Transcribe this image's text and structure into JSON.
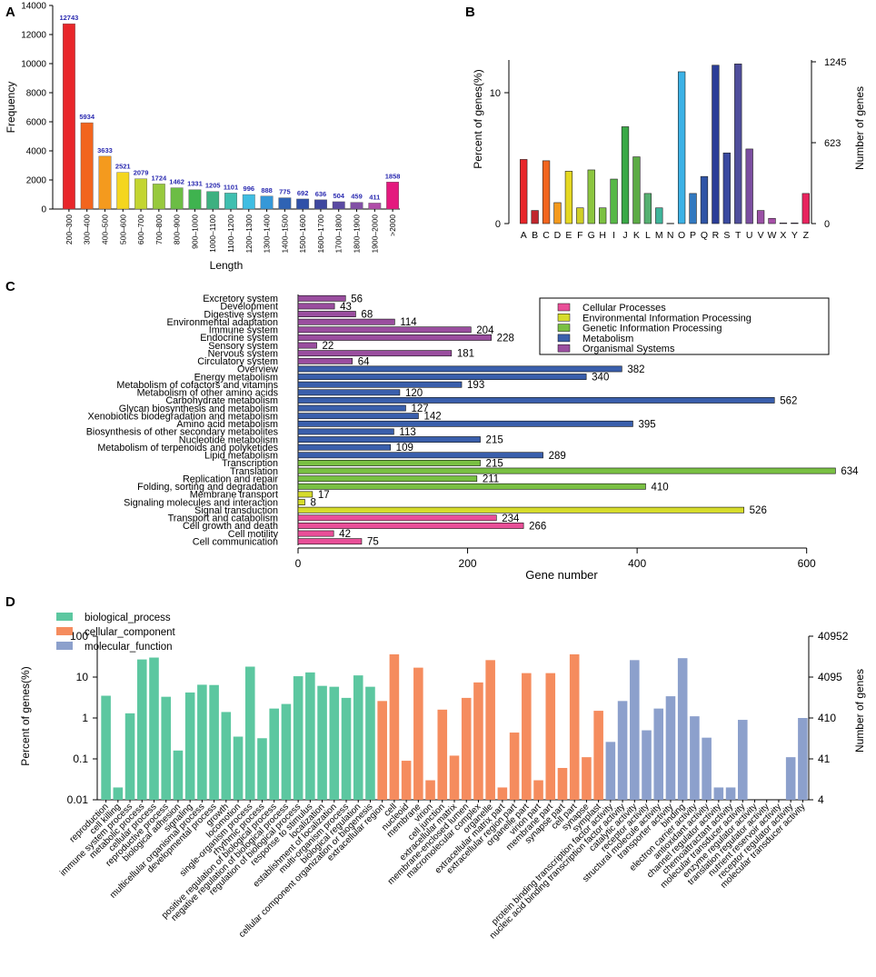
{
  "chart_data": [
    {
      "panel": "A",
      "type": "bar",
      "xlabel": "Length",
      "ylabel": "Frequency",
      "ylim": [
        0,
        14000
      ],
      "yticks": [
        0,
        2000,
        4000,
        6000,
        8000,
        10000,
        12000,
        14000
      ],
      "categories": [
        "200–300",
        "300–400",
        "400–500",
        "500–600",
        "600–700",
        "700–800",
        "800–900",
        "900–1000",
        "1000–1100",
        "1100–1200",
        "1200–1300",
        "1300–1400",
        "1400–1500",
        "1500–1600",
        "1600–1700",
        "1700–1800",
        "1800–1900",
        "1900–2000",
        ">2000"
      ],
      "values": [
        12743,
        5934,
        3633,
        2521,
        2079,
        1724,
        1462,
        1331,
        1205,
        1101,
        996,
        888,
        775,
        692,
        636,
        504,
        459,
        411,
        1858
      ],
      "colors": [
        "#e8262a",
        "#f2651e",
        "#f49a1e",
        "#f4d61f",
        "#c3d530",
        "#97c93d",
        "#6cbd45",
        "#3fb34f",
        "#3db080",
        "#3fbfb0",
        "#3fbde2",
        "#3598d8",
        "#2f63b4",
        "#2f50a8",
        "#3e479f",
        "#5a4aa2",
        "#8250a5",
        "#b04ca8",
        "#e4197e"
      ],
      "label_color": "#2a2ab0"
    },
    {
      "panel": "B",
      "type": "bar",
      "ylabel": "Percent of genes(%)",
      "y2label": "Number of genes",
      "ylim": [
        0,
        12.5
      ],
      "yticks": [
        0,
        10
      ],
      "y2ticks": [
        "0",
        "623",
        "1245"
      ],
      "categories": [
        "A",
        "B",
        "C",
        "D",
        "E",
        "F",
        "G",
        "H",
        "I",
        "J",
        "K",
        "L",
        "M",
        "N",
        "O",
        "P",
        "Q",
        "R",
        "S",
        "T",
        "U",
        "V",
        "W",
        "X",
        "Y",
        "Z"
      ],
      "values": [
        4.9,
        1.0,
        4.8,
        1.6,
        4.0,
        1.2,
        4.1,
        1.2,
        3.4,
        7.4,
        5.1,
        2.3,
        1.2,
        0.02,
        11.6,
        2.3,
        3.6,
        12.1,
        5.4,
        12.2,
        5.7,
        1.0,
        0.4,
        0.05,
        0.05,
        2.3
      ],
      "colors": [
        "#e8262a",
        "#c1272d",
        "#f2651e",
        "#f49a1e",
        "#e5d822",
        "#d0cf27",
        "#8cc63f",
        "#7cc142",
        "#57b847",
        "#3aa947",
        "#5cab45",
        "#55b071",
        "#3fb59b",
        "#29abe2",
        "#3cb2e6",
        "#3279c0",
        "#2f54a6",
        "#2b3d97",
        "#3a4aa0",
        "#4f4e9c",
        "#7b4ea0",
        "#9b51a6",
        "#a74fa8",
        "#7b3f99",
        "#5b2c87",
        "#e8245e"
      ]
    },
    {
      "panel": "C",
      "type": "bar",
      "orientation": "horizontal",
      "xlabel": "Gene number",
      "xlim": [
        0,
        640
      ],
      "xticks": [
        0,
        200,
        400,
        600
      ],
      "categories": [
        "Excretory system",
        "Development",
        "Digestive system",
        "Environmental adaptation",
        "Immune system",
        "Endocrine system",
        "Sensory system",
        "Nervous system",
        "Circulatory system",
        "Overview",
        "Energy metabolism",
        "Metabolism of cofactors and vitamins",
        "Metabolism of other amino acids",
        "Carbohydrate metabolism",
        "Glycan biosynthesis and metabolism",
        "Xenobiotics biodegradation and metabolism",
        "Amino acid metabolism",
        "Biosynthesis of other secondary metabolites",
        "Nucleotide metabolism",
        "Metabolism of terpenoids and polyketides",
        "Lipid metabolism",
        "Transcription",
        "Translation",
        "Replication and repair",
        "Folding, sorting and degradation",
        "Membrane transport",
        "Signaling molecules and interaction",
        "Signal transduction",
        "Transport and catabolism",
        "Cell growth and death",
        "Cell motility",
        "Cell communication"
      ],
      "values": [
        56,
        43,
        68,
        114,
        204,
        228,
        22,
        181,
        64,
        382,
        340,
        193,
        120,
        562,
        127,
        142,
        395,
        113,
        215,
        109,
        289,
        215,
        634,
        211,
        410,
        17,
        8,
        526,
        234,
        266,
        42,
        75
      ],
      "groups": [
        4,
        4,
        4,
        4,
        4,
        4,
        4,
        4,
        4,
        3,
        3,
        3,
        3,
        3,
        3,
        3,
        3,
        3,
        3,
        3,
        3,
        2,
        2,
        2,
        2,
        1,
        1,
        1,
        0,
        0,
        0,
        0
      ],
      "legend": [
        "Cellular Processes",
        "Environmental Information Processing",
        "Genetic Information Processing",
        "Metabolism",
        "Organismal Systems"
      ],
      "group_colors": [
        "#e94f98",
        "#d6dc2b",
        "#79c043",
        "#3a5fac",
        "#9a4e9f"
      ],
      "legend_position": "top-right"
    },
    {
      "panel": "D",
      "type": "bar",
      "yscale": "log",
      "ylabel": "Percent of genes(%)",
      "y2label": "Number of genes",
      "ylim": [
        0.01,
        100
      ],
      "yticks": [
        "0.01",
        "0.1",
        "1",
        "10",
        "100"
      ],
      "y2ticks": [
        "4",
        "41",
        "410",
        "4095",
        "40952"
      ],
      "legend": [
        "biological_process",
        "cellular_component",
        "molecular_function"
      ],
      "group_colors": [
        "#5cc7a0",
        "#f58c5e",
        "#8ca0cc"
      ],
      "legend_position": "top-left",
      "categories": [
        "reproduction",
        "cell killing",
        "immune system process",
        "metabolic process",
        "cellular process",
        "reproductive process",
        "biological adhesion",
        "signaling",
        "multicellular organismal process",
        "developmental process",
        "growth",
        "locomotion",
        "single-organism process",
        "rhythmic process",
        "positive regulation of biological process",
        "negative regulation of biological process",
        "regulation of biological process",
        "response to stimulus",
        "localization",
        "establishment of localization",
        "multi-organism process",
        "biological regulation",
        "cellular component organization or biogenesis",
        "extracellular region",
        "cell",
        "nucleoid",
        "membrane",
        "virion",
        "cell junction",
        "extracellular matrix",
        "membrane-enclosed lumen",
        "macromolecular complex",
        "organelle",
        "extracellular matrix part",
        "extracellular region part",
        "organelle part",
        "virion part",
        "membrane part",
        "synapse part",
        "cell part",
        "synapse",
        "symplast",
        "protein binding transcription factor activity",
        "nucleic acid binding transcription factor activity",
        "catalytic activity",
        "receptor activity",
        "structural molecule activity",
        "transporter activity",
        "binding",
        "electron carrier activity",
        "antioxidant activity",
        "channel regulator activity",
        "chemoattractant activity",
        "molecular transducer activity",
        "enzyme regulator activity",
        "translation regulator activity",
        "nutrient reservoir activity",
        "receptor regulator activity",
        "molecular transducer activity"
      ],
      "values": [
        3.5,
        0.02,
        1.3,
        27,
        30,
        3.3,
        0.16,
        4.2,
        6.5,
        6.4,
        1.4,
        0.35,
        18,
        0.32,
        1.7,
        2.2,
        10.5,
        13,
        6.1,
        5.8,
        3.1,
        11,
        5.8,
        2.6,
        36,
        0.09,
        17,
        0.03,
        1.6,
        0.12,
        3.1,
        7.4,
        26,
        0.02,
        0.44,
        12.5,
        0.03,
        12.5,
        0.06,
        36,
        0.11,
        1.5,
        0.26,
        2.6,
        26,
        0.5,
        1.7,
        3.4,
        29,
        1.1,
        0.33,
        0.02,
        0.02,
        0.9,
        null,
        null,
        null,
        0.11,
        1.0
      ],
      "groups": [
        0,
        0,
        0,
        0,
        0,
        0,
        0,
        0,
        0,
        0,
        0,
        0,
        0,
        0,
        0,
        0,
        0,
        0,
        0,
        0,
        0,
        0,
        0,
        1,
        1,
        1,
        1,
        1,
        1,
        1,
        1,
        1,
        1,
        1,
        1,
        1,
        1,
        1,
        1,
        1,
        1,
        1,
        2,
        2,
        2,
        2,
        2,
        2,
        2,
        2,
        2,
        2,
        2,
        2,
        2,
        2,
        2,
        2,
        2
      ]
    }
  ]
}
